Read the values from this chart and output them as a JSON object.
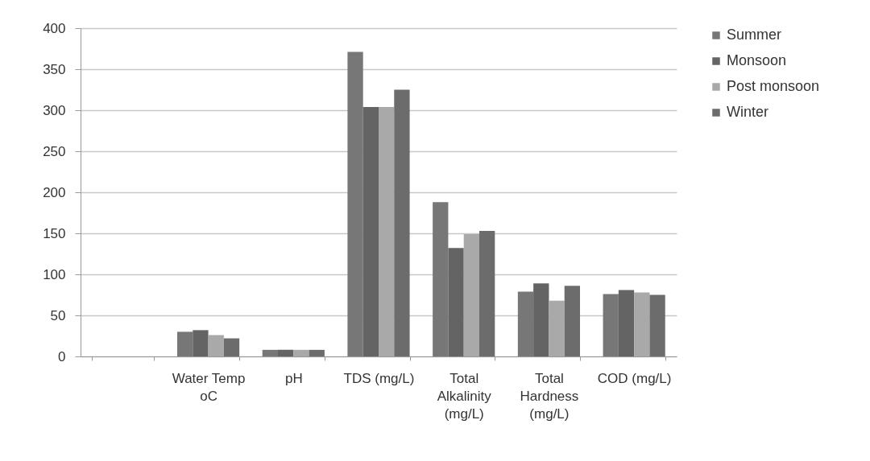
{
  "chart_data": {
    "type": "bar",
    "categories": [
      null,
      "Water Temp oC",
      "pH",
      "TDS (mg/L)",
      "Total Alkalinity (mg/L)",
      "Total Hardness (mg/L)",
      "COD (mg/L)"
    ],
    "series": [
      {
        "name": "Summer",
        "color": "#777777",
        "values": [
          null,
          30,
          8,
          371,
          188,
          79,
          76
        ]
      },
      {
        "name": "Monsoon",
        "color": "#646464",
        "values": [
          null,
          32,
          8,
          304,
          132,
          89,
          81
        ]
      },
      {
        "name": "Post monsoon",
        "color": "#a9a9a9",
        "values": [
          null,
          26,
          8,
          304,
          149,
          68,
          78
        ]
      },
      {
        "name": "Winter",
        "color": "#6c6c6c",
        "values": [
          null,
          22,
          8,
          325,
          153,
          86,
          75
        ]
      }
    ],
    "ylim": [
      0,
      400
    ],
    "yticks": [
      0,
      50,
      100,
      150,
      200,
      250,
      300,
      350,
      400
    ],
    "grid": "y",
    "legend": "right"
  }
}
